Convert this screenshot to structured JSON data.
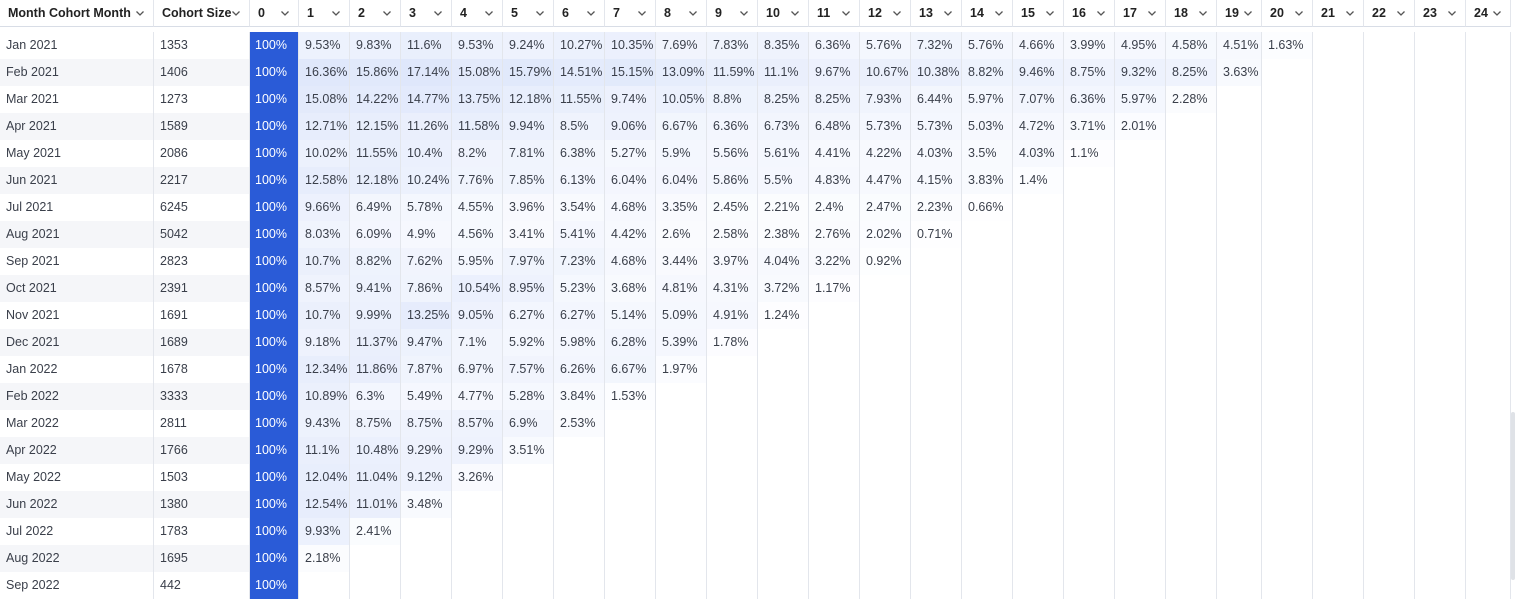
{
  "columns": [
    {
      "label": "Month Cohort Month",
      "icon": "chevron-down-icon"
    },
    {
      "label": "Cohort Size",
      "icon": "chevron-down-icon"
    },
    {
      "label": "0"
    },
    {
      "label": "1"
    },
    {
      "label": "2"
    },
    {
      "label": "3"
    },
    {
      "label": "4"
    },
    {
      "label": "5"
    },
    {
      "label": "6"
    },
    {
      "label": "7"
    },
    {
      "label": "8"
    },
    {
      "label": "9"
    },
    {
      "label": "10"
    },
    {
      "label": "11"
    },
    {
      "label": "12"
    },
    {
      "label": "13"
    },
    {
      "label": "14"
    },
    {
      "label": "15"
    },
    {
      "label": "16"
    },
    {
      "label": "17"
    },
    {
      "label": "18"
    },
    {
      "label": "19"
    },
    {
      "label": "20"
    },
    {
      "label": "21"
    },
    {
      "label": "22"
    },
    {
      "label": "23"
    },
    {
      "label": "24"
    }
  ],
  "colors": {
    "period0_bg": "#2a5bd7",
    "heat_base": "#ffffff",
    "heat_high": "#dfe7fb",
    "row_stripe": "#f5f6f9"
  },
  "rows": [
    {
      "month": "Jan 2021",
      "size": "1353",
      "values": [
        "100%",
        "9.53%",
        "9.83%",
        "11.6%",
        "9.53%",
        "9.24%",
        "10.27%",
        "10.35%",
        "7.69%",
        "7.83%",
        "8.35%",
        "6.36%",
        "5.76%",
        "7.32%",
        "5.76%",
        "4.66%",
        "3.99%",
        "4.95%",
        "4.58%",
        "4.51%",
        "1.63%"
      ]
    },
    {
      "month": "Feb 2021",
      "size": "1406",
      "values": [
        "100%",
        "16.36%",
        "15.86%",
        "17.14%",
        "15.08%",
        "15.79%",
        "14.51%",
        "15.15%",
        "13.09%",
        "11.59%",
        "11.1%",
        "9.67%",
        "10.67%",
        "10.38%",
        "8.82%",
        "9.46%",
        "8.75%",
        "9.32%",
        "8.25%",
        "3.63%"
      ]
    },
    {
      "month": "Mar 2021",
      "size": "1273",
      "values": [
        "100%",
        "15.08%",
        "14.22%",
        "14.77%",
        "13.75%",
        "12.18%",
        "11.55%",
        "9.74%",
        "10.05%",
        "8.8%",
        "8.25%",
        "8.25%",
        "7.93%",
        "6.44%",
        "5.97%",
        "7.07%",
        "6.36%",
        "5.97%",
        "2.28%"
      ]
    },
    {
      "month": "Apr 2021",
      "size": "1589",
      "values": [
        "100%",
        "12.71%",
        "12.15%",
        "11.26%",
        "11.58%",
        "9.94%",
        "8.5%",
        "9.06%",
        "6.67%",
        "6.36%",
        "6.73%",
        "6.48%",
        "5.73%",
        "5.73%",
        "5.03%",
        "4.72%",
        "3.71%",
        "2.01%"
      ]
    },
    {
      "month": "May 2021",
      "size": "2086",
      "values": [
        "100%",
        "10.02%",
        "11.55%",
        "10.4%",
        "8.2%",
        "7.81%",
        "6.38%",
        "5.27%",
        "5.9%",
        "5.56%",
        "5.61%",
        "4.41%",
        "4.22%",
        "4.03%",
        "3.5%",
        "4.03%",
        "1.1%"
      ]
    },
    {
      "month": "Jun 2021",
      "size": "2217",
      "values": [
        "100%",
        "12.58%",
        "12.18%",
        "10.24%",
        "7.76%",
        "7.85%",
        "6.13%",
        "6.04%",
        "6.04%",
        "5.86%",
        "5.5%",
        "4.83%",
        "4.47%",
        "4.15%",
        "3.83%",
        "1.4%"
      ]
    },
    {
      "month": "Jul 2021",
      "size": "6245",
      "values": [
        "100%",
        "9.66%",
        "6.49%",
        "5.78%",
        "4.55%",
        "3.96%",
        "3.54%",
        "4.68%",
        "3.35%",
        "2.45%",
        "2.21%",
        "2.4%",
        "2.47%",
        "2.23%",
        "0.66%"
      ]
    },
    {
      "month": "Aug 2021",
      "size": "5042",
      "values": [
        "100%",
        "8.03%",
        "6.09%",
        "4.9%",
        "4.56%",
        "3.41%",
        "5.41%",
        "4.42%",
        "2.6%",
        "2.58%",
        "2.38%",
        "2.76%",
        "2.02%",
        "0.71%"
      ]
    },
    {
      "month": "Sep 2021",
      "size": "2823",
      "values": [
        "100%",
        "10.7%",
        "8.82%",
        "7.62%",
        "5.95%",
        "7.97%",
        "7.23%",
        "4.68%",
        "3.44%",
        "3.97%",
        "4.04%",
        "3.22%",
        "0.92%"
      ]
    },
    {
      "month": "Oct 2021",
      "size": "2391",
      "values": [
        "100%",
        "8.57%",
        "9.41%",
        "7.86%",
        "10.54%",
        "8.95%",
        "5.23%",
        "3.68%",
        "4.81%",
        "4.31%",
        "3.72%",
        "1.17%"
      ]
    },
    {
      "month": "Nov 2021",
      "size": "1691",
      "values": [
        "100%",
        "10.7%",
        "9.99%",
        "13.25%",
        "9.05%",
        "6.27%",
        "6.27%",
        "5.14%",
        "5.09%",
        "4.91%",
        "1.24%"
      ]
    },
    {
      "month": "Dec 2021",
      "size": "1689",
      "values": [
        "100%",
        "9.18%",
        "11.37%",
        "9.47%",
        "7.1%",
        "5.92%",
        "5.98%",
        "6.28%",
        "5.39%",
        "1.78%"
      ]
    },
    {
      "month": "Jan 2022",
      "size": "1678",
      "values": [
        "100%",
        "12.34%",
        "11.86%",
        "7.87%",
        "6.97%",
        "7.57%",
        "6.26%",
        "6.67%",
        "1.97%"
      ]
    },
    {
      "month": "Feb 2022",
      "size": "3333",
      "values": [
        "100%",
        "10.89%",
        "6.3%",
        "5.49%",
        "4.77%",
        "5.28%",
        "3.84%",
        "1.53%"
      ]
    },
    {
      "month": "Mar 2022",
      "size": "2811",
      "values": [
        "100%",
        "9.43%",
        "8.75%",
        "8.75%",
        "8.57%",
        "6.9%",
        "2.53%"
      ]
    },
    {
      "month": "Apr 2022",
      "size": "1766",
      "values": [
        "100%",
        "11.1%",
        "10.48%",
        "9.29%",
        "9.29%",
        "3.51%"
      ]
    },
    {
      "month": "May 2022",
      "size": "1503",
      "values": [
        "100%",
        "12.04%",
        "11.04%",
        "9.12%",
        "3.26%"
      ]
    },
    {
      "month": "Jun 2022",
      "size": "1380",
      "values": [
        "100%",
        "12.54%",
        "11.01%",
        "3.48%"
      ]
    },
    {
      "month": "Jul 2022",
      "size": "1783",
      "values": [
        "100%",
        "9.93%",
        "2.41%"
      ]
    },
    {
      "month": "Aug 2022",
      "size": "1695",
      "values": [
        "100%",
        "2.18%"
      ]
    },
    {
      "month": "Sep 2022",
      "size": "442",
      "values": [
        "100%"
      ]
    }
  ]
}
